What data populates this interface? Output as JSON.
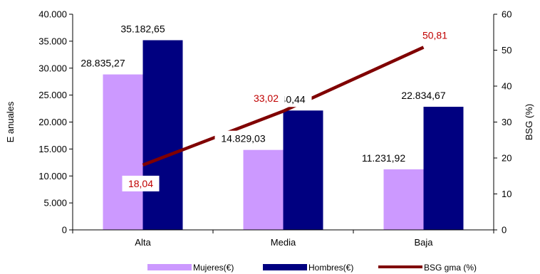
{
  "chart_data": {
    "type": "bar",
    "categories": [
      "Alta",
      "Media",
      "Baja"
    ],
    "series": [
      {
        "name": "Mujeres(€)",
        "kind": "bar",
        "axis": "left",
        "color": "#CC99FF",
        "values": [
          28835.27,
          14829.03,
          11231.92
        ],
        "labels": [
          "28.835,27",
          "14.829,03",
          "11.231,92"
        ]
      },
      {
        "name": "Hombres(€)",
        "kind": "bar",
        "axis": "left",
        "color": "#000080",
        "values": [
          35182.65,
          22140.44,
          22834.67
        ],
        "labels": [
          "35.182,65",
          "22.140,44",
          "22.834,67"
        ]
      },
      {
        "name": "BSG gma (%)",
        "kind": "line",
        "axis": "right",
        "color": "#800000",
        "label_color": "#C00000",
        "values": [
          18.04,
          33.02,
          50.81
        ],
        "labels": [
          "18,04",
          "33,02",
          "50,81"
        ]
      }
    ],
    "ylabel": "E anuales",
    "ylim": [
      0,
      40000
    ],
    "y_ticks": [
      0,
      5000,
      10000,
      15000,
      20000,
      25000,
      30000,
      35000,
      40000
    ],
    "y_tick_labels": [
      "0",
      "5.000",
      "10.000",
      "15.000",
      "20.000",
      "25.000",
      "30.000",
      "35.000",
      "40.000"
    ],
    "y2label": "BSG (%)",
    "y2lim": [
      0,
      60
    ],
    "y2_ticks": [
      0,
      10,
      20,
      30,
      40,
      50,
      60
    ],
    "y2_tick_labels": [
      "0",
      "10",
      "20",
      "30",
      "40",
      "50",
      "60"
    ],
    "grid": false,
    "legend_position": "bottom"
  }
}
